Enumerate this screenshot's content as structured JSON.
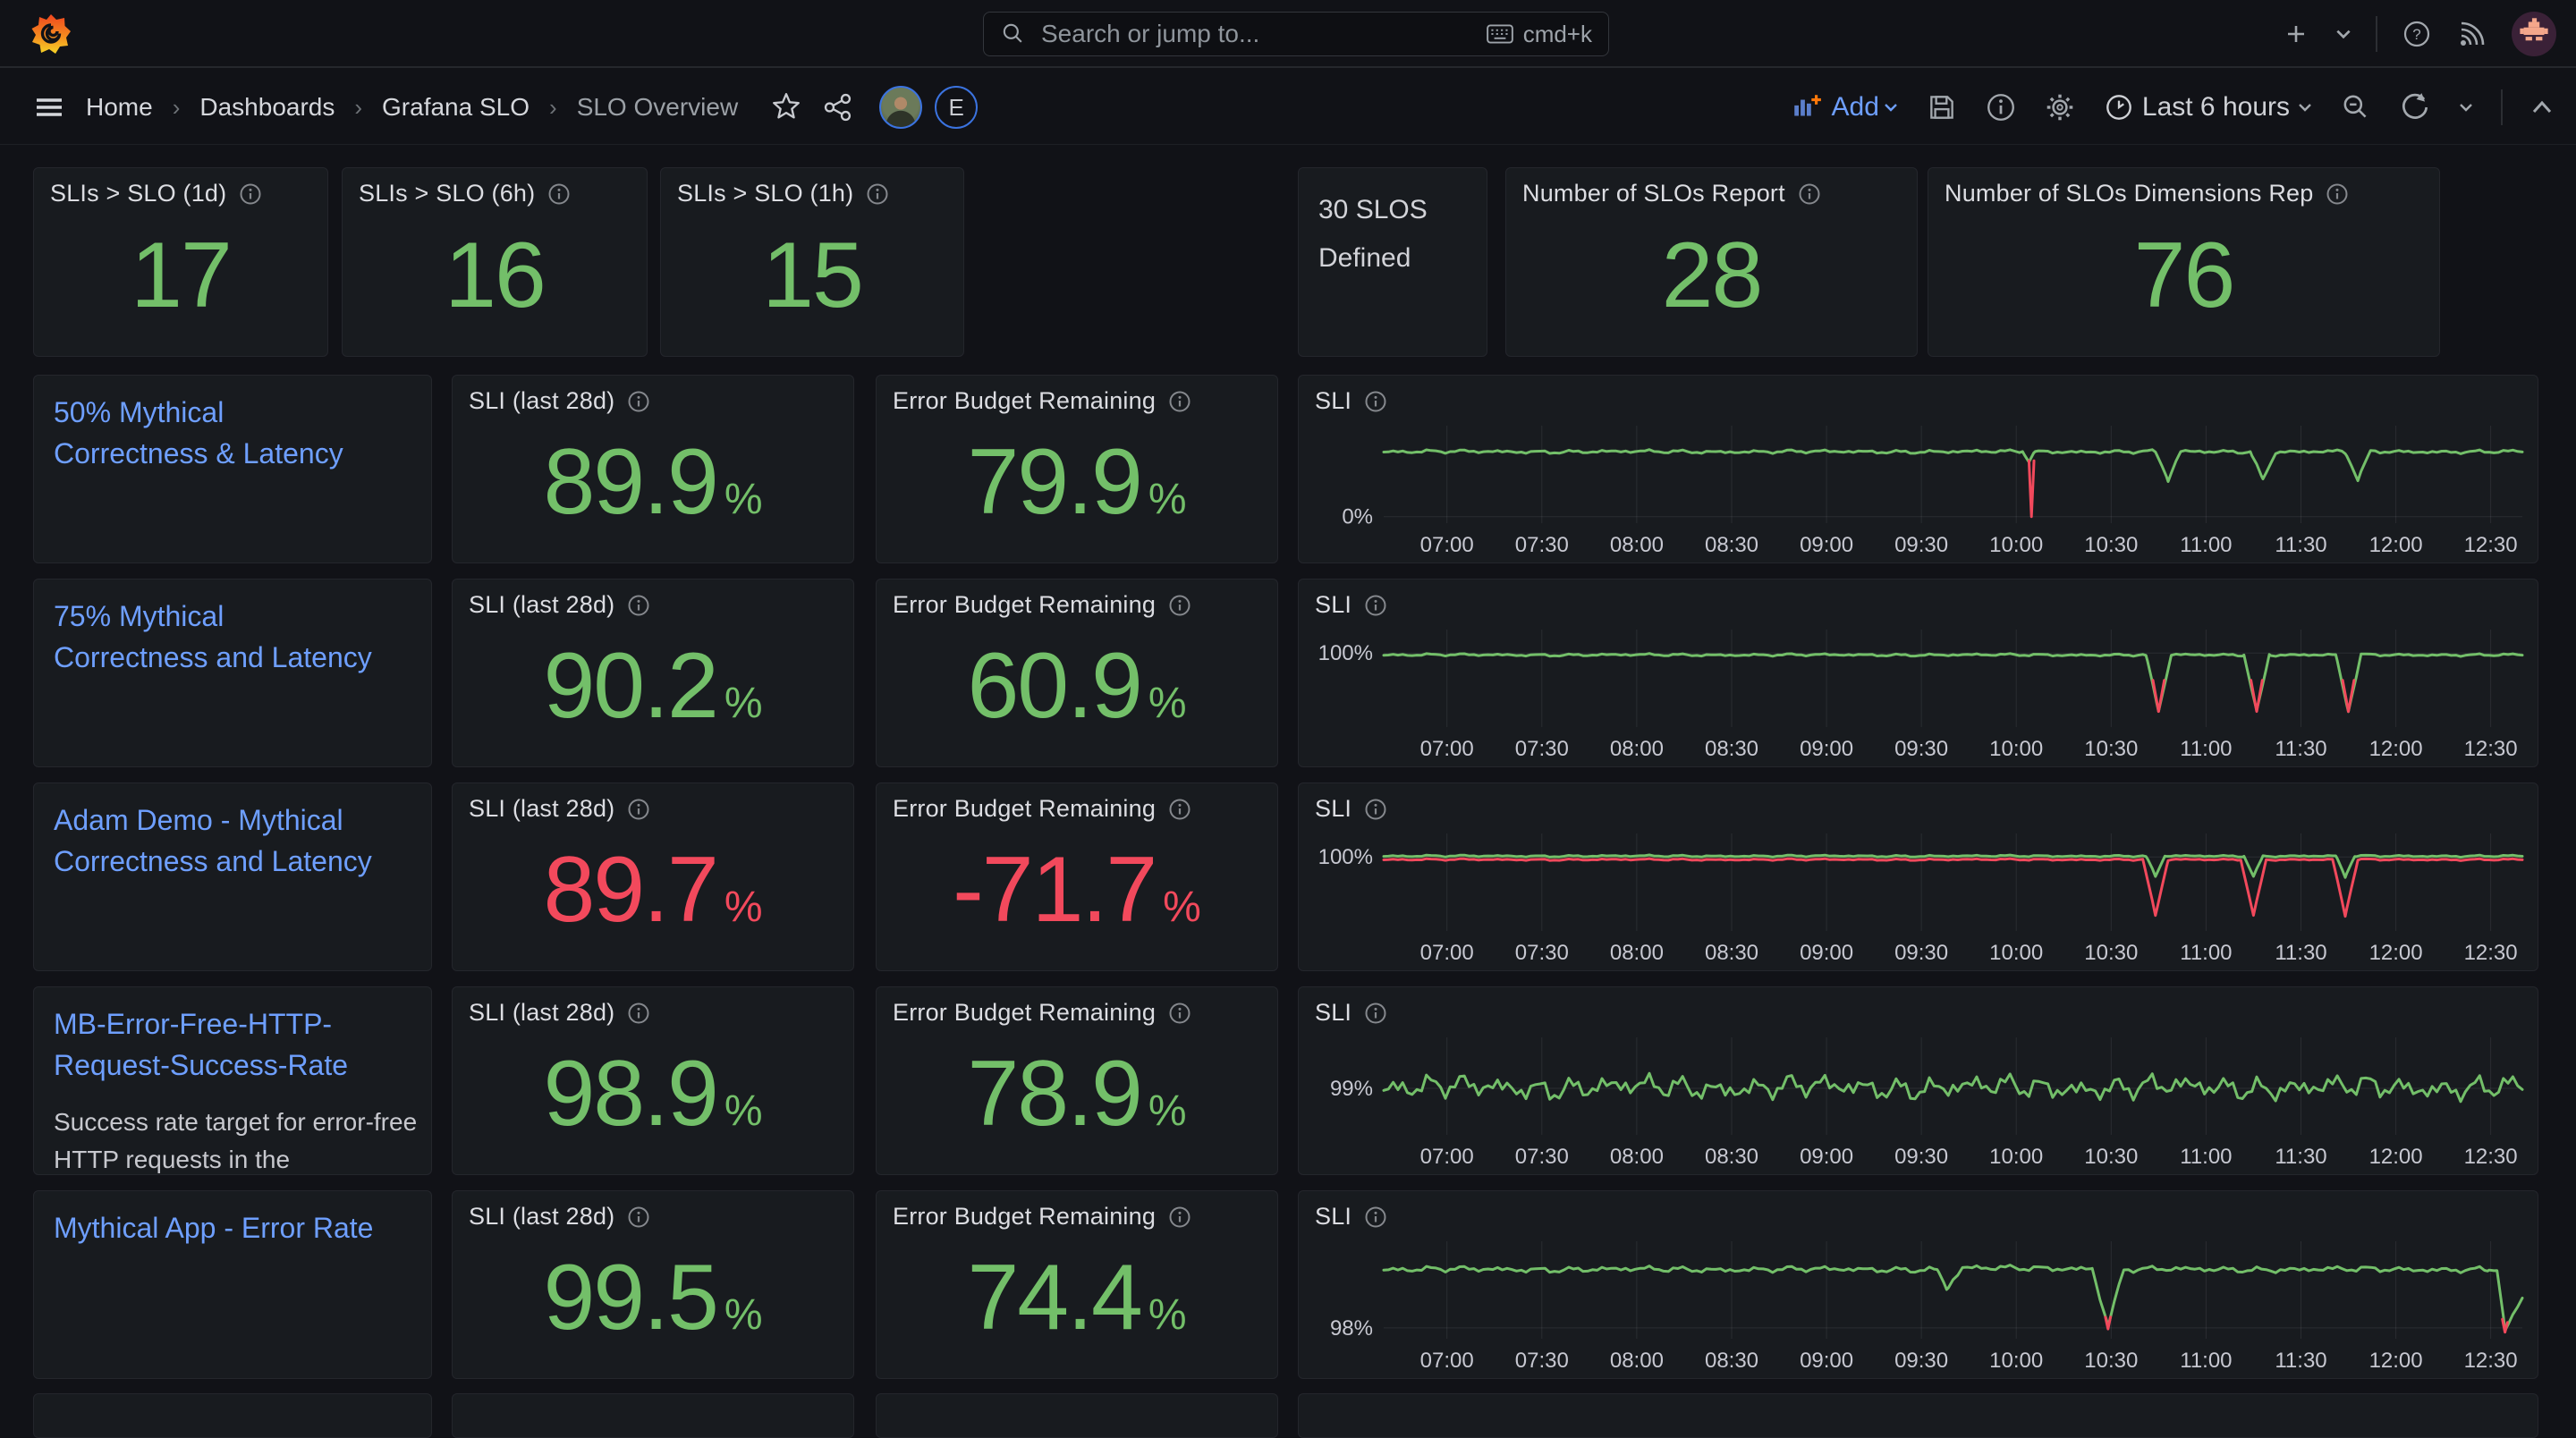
{
  "colors": {
    "green": "#73bf69",
    "red": "#f2495c",
    "link_blue": "#6e9fff",
    "panel_bg": "#181b1f",
    "page_bg": "#111217"
  },
  "topbar": {
    "search_placeholder": "Search or jump to...",
    "shortcut": "cmd+k"
  },
  "breadcrumb": {
    "items": [
      "Home",
      "Dashboards",
      "Grafana SLO",
      "SLO Overview"
    ]
  },
  "toolbar": {
    "add_label": "Add",
    "time_range": "Last 6 hours",
    "avatar_letter": "E"
  },
  "panel_labels": {
    "sli": "SLI (last 28d)",
    "budget": "Error Budget Remaining",
    "chart": "SLI",
    "unit": "%"
  },
  "stats": [
    {
      "title": "SLIs > SLO (1d)",
      "value": "17"
    },
    {
      "title": "SLIs > SLO (6h)",
      "value": "16"
    },
    {
      "title": "SLIs > SLO (1h)",
      "value": "15"
    },
    {
      "text": "30 SLOS Defined"
    },
    {
      "title": "Number of SLOs Report",
      "value": "28"
    },
    {
      "title": "Number of SLOs Dimensions Rep",
      "value": "76"
    }
  ],
  "rows": [
    {
      "title": "50% Mythical Correctness & Latency",
      "sli": "89.9",
      "budget": "79.9"
    },
    {
      "title": "75% Mythical Correctness and Latency",
      "sli": "90.2",
      "budget": "60.9"
    },
    {
      "title": "Adam Demo - Mythical Correctness and Latency",
      "sli": "89.7",
      "budget": "-71.7"
    },
    {
      "title": "MB-Error-Free-HTTP-Request-Success-Rate",
      "description": "Success rate target for error-free HTTP requests in the",
      "sli": "98.9",
      "budget": "78.9"
    },
    {
      "title": "Mythical App - Error Rate",
      "sli": "99.5",
      "budget": "74.4"
    }
  ],
  "chart_data": [
    {
      "type": "line",
      "title": "SLI",
      "x_range_minutes": [
        400,
        760
      ],
      "tick_minutes": [
        420,
        450,
        480,
        510,
        540,
        570,
        600,
        630,
        660,
        690,
        720,
        750
      ],
      "x_ticks": [
        "07:00",
        "07:30",
        "08:00",
        "08:30",
        "09:00",
        "09:30",
        "10:00",
        "10:30",
        "11:00",
        "11:30",
        "12:00",
        "12:30"
      ],
      "ylim": [
        -10,
        140
      ],
      "y_labels": [
        {
          "value": 0,
          "text": "0%"
        }
      ],
      "series": [
        {
          "name": "sli",
          "color": "#73bf69",
          "noise": 3,
          "points": [
            [
              400,
              100
            ],
            [
              602,
              100
            ],
            [
              604,
              86
            ],
            [
              606,
              100
            ],
            [
              644,
              100
            ],
            [
              648,
              57
            ],
            [
              652,
              100
            ],
            [
              674,
              100
            ],
            [
              678,
              57
            ],
            [
              682,
              100
            ],
            [
              704,
              100
            ],
            [
              708,
              57
            ],
            [
              712,
              100
            ],
            [
              760,
              100
            ]
          ]
        },
        {
          "name": "sli-breach",
          "color": "#f2495c",
          "noise": 0,
          "points": [
            [
              604,
              86
            ],
            [
              604.8,
              0
            ],
            [
              605.6,
              86
            ]
          ]
        }
      ]
    },
    {
      "type": "line",
      "title": "SLI",
      "x_range_minutes": [
        400,
        760
      ],
      "tick_minutes": [
        420,
        450,
        480,
        510,
        540,
        570,
        600,
        630,
        660,
        690,
        720,
        750
      ],
      "x_ticks": [
        "07:00",
        "07:30",
        "08:00",
        "08:30",
        "09:00",
        "09:30",
        "10:00",
        "10:30",
        "11:00",
        "11:30",
        "12:00",
        "12:30"
      ],
      "ylim": [
        62,
        112
      ],
      "y_labels": [
        {
          "value": 100,
          "text": "100%"
        }
      ],
      "series": [
        {
          "name": "sli",
          "color": "#73bf69",
          "noise": 0.7,
          "points": [
            [
              400,
              99
            ],
            [
              641,
              99
            ],
            [
              645,
              70
            ],
            [
              649,
              99
            ],
            [
              672,
              99
            ],
            [
              676,
              70
            ],
            [
              680,
              99
            ],
            [
              701,
              99
            ],
            [
              705,
              70
            ],
            [
              709,
              99
            ],
            [
              760,
              99
            ]
          ]
        },
        {
          "name": "sli-breach",
          "color": "#f2495c",
          "noise": 0,
          "points": [
            [
              643.2,
              86
            ],
            [
              645,
              70
            ],
            [
              646.8,
              86
            ],
            null,
            [
              674.2,
              86
            ],
            [
              676,
              70
            ],
            [
              677.8,
              86
            ],
            null,
            [
              703.2,
              86
            ],
            [
              705,
              70
            ],
            [
              706.8,
              86
            ]
          ]
        }
      ]
    },
    {
      "type": "line",
      "title": "SLI",
      "x_range_minutes": [
        400,
        760
      ],
      "tick_minutes": [
        420,
        450,
        480,
        510,
        540,
        570,
        600,
        630,
        660,
        690,
        720,
        750
      ],
      "x_ticks": [
        "07:00",
        "07:30",
        "08:00",
        "08:30",
        "09:00",
        "09:30",
        "10:00",
        "10:30",
        "11:00",
        "11:30",
        "12:00",
        "12:30"
      ],
      "ylim": [
        62,
        112
      ],
      "y_labels": [
        {
          "value": 100,
          "text": "100%"
        }
      ],
      "series": [
        {
          "name": "sli-bad",
          "color": "#f2495c",
          "noise": 0.5,
          "points": [
            [
              400,
              98.6
            ],
            [
              640,
              98.6
            ],
            [
              644,
              70
            ],
            [
              648,
              98.6
            ],
            [
              671,
              98.6
            ],
            [
              675,
              70
            ],
            [
              679,
              98.6
            ],
            [
              700,
              98.6
            ],
            [
              704,
              70
            ],
            [
              708,
              98.6
            ],
            [
              760,
              98.6
            ]
          ]
        },
        {
          "name": "sli",
          "color": "#73bf69",
          "noise": 0.55,
          "points": [
            [
              400,
              100.4
            ],
            [
              641,
              100.4
            ],
            [
              644,
              90
            ],
            [
              647,
              100.4
            ],
            [
              672,
              100.4
            ],
            [
              675,
              90
            ],
            [
              678,
              100.4
            ],
            [
              701,
              100.4
            ],
            [
              704,
              90
            ],
            [
              707,
              100.4
            ],
            [
              760,
              100.4
            ]
          ]
        }
      ]
    },
    {
      "type": "line",
      "title": "SLI",
      "x_range_minutes": [
        400,
        760
      ],
      "tick_minutes": [
        420,
        450,
        480,
        510,
        540,
        570,
        600,
        630,
        660,
        690,
        720,
        750
      ],
      "x_ticks": [
        "07:00",
        "07:30",
        "08:00",
        "08:30",
        "09:00",
        "09:30",
        "10:00",
        "10:30",
        "11:00",
        "11:30",
        "12:00",
        "12:30"
      ],
      "ylim": [
        97.95,
        100.15
      ],
      "y_labels": [
        {
          "value": 99,
          "text": "99%"
        }
      ],
      "series": [
        {
          "name": "sli",
          "color": "#73bf69",
          "noise": 0.3,
          "points": [
            [
              400,
              99.02
            ],
            [
              760,
              99.02
            ]
          ]
        }
      ]
    },
    {
      "type": "line",
      "title": "SLI",
      "x_range_minutes": [
        400,
        760
      ],
      "tick_minutes": [
        420,
        450,
        480,
        510,
        540,
        570,
        600,
        630,
        660,
        690,
        720,
        750
      ],
      "x_ticks": [
        "07:00",
        "07:30",
        "08:00",
        "08:30",
        "09:00",
        "09:30",
        "10:00",
        "10:30",
        "11:00",
        "11:30",
        "12:00",
        "12:30"
      ],
      "ylim": [
        97.9,
        98.8
      ],
      "y_labels": [
        {
          "value": 98,
          "text": "98%"
        }
      ],
      "series": [
        {
          "name": "sli",
          "color": "#73bf69",
          "noise": 0.03,
          "points": [
            [
              400,
              98.54
            ],
            [
              575,
              98.54
            ],
            [
              578,
              98.37
            ],
            [
              580,
              98.44
            ],
            [
              583,
              98.55
            ],
            [
              624,
              98.55
            ],
            [
              629,
              98.02
            ],
            [
              634,
              98.54
            ],
            [
              749,
              98.54
            ],
            [
              752,
              98.55
            ],
            [
              754.5,
              97.97
            ],
            [
              757,
              98.1
            ],
            [
              760,
              98.28
            ]
          ]
        },
        {
          "name": "sli-breach",
          "color": "#f2495c",
          "noise": 0,
          "points": [
            [
              628.2,
              98.1
            ],
            [
              629,
              97.99
            ],
            [
              629.8,
              98.1
            ],
            null,
            [
              753.7,
              98.08
            ],
            [
              754.5,
              97.96
            ],
            [
              755.3,
              98.05
            ]
          ]
        }
      ]
    }
  ]
}
